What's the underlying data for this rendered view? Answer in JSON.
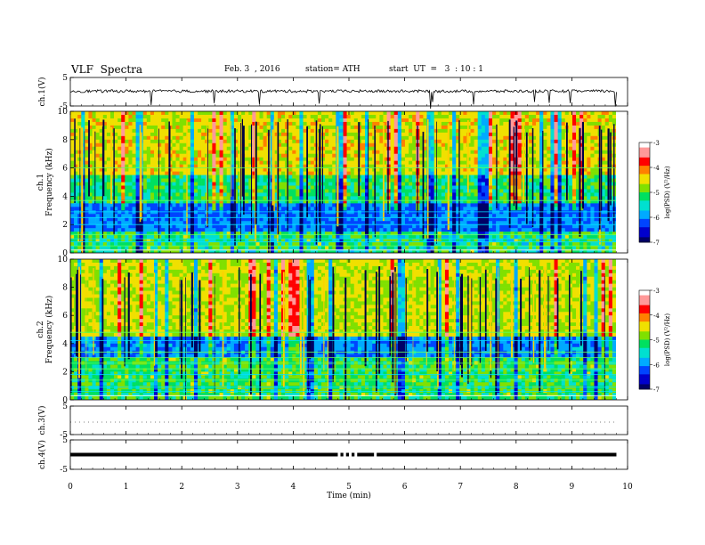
{
  "header": {
    "title": "VLF  Spectra",
    "date": "Feb. 3  , 2016",
    "station": "station= ATH",
    "start": "start  UT  =   3  : 10 : 1"
  },
  "colors": {
    "psd_colormap": [
      "#000066",
      "#0000cc",
      "#0044ff",
      "#00aaff",
      "#00e0d0",
      "#00e060",
      "#80e000",
      "#f0e000",
      "#ff8000",
      "#ff0000",
      "#ff9999",
      "#ffffff"
    ],
    "trace": "#000000"
  },
  "chart_data": [
    {
      "name_label": "ch.1(V)",
      "type": "line",
      "ylabel": "ch.1(V)",
      "ylim": [
        -5,
        5
      ],
      "yticks": [
        "5",
        "-5"
      ],
      "mean": 0.2,
      "noise_amplitude": 0.5,
      "x": [
        0,
        9.8
      ]
    },
    {
      "type": "heatmap",
      "ylabel": "ch.1\nFrequency  (kHz)",
      "ylim": [
        0,
        10
      ],
      "yticks": [
        "0",
        "2",
        "4",
        "6",
        "8",
        "10"
      ],
      "colorbar": {
        "label": "log(PSD) (V²/Hz)",
        "range": [
          -7,
          -3
        ],
        "ticks": [
          "-3",
          "-4",
          "-5",
          "-6",
          "-7"
        ]
      }
    },
    {
      "type": "heatmap",
      "ylabel": "ch.2\nFrequency  (kHz)",
      "ylim": [
        0,
        10
      ],
      "yticks": [
        "0",
        "2",
        "4",
        "6",
        "8",
        "10"
      ],
      "colorbar": {
        "label": "log(PSD) (V²/Hz)",
        "range": [
          -7,
          -3
        ],
        "ticks": [
          "-3",
          "-4",
          "-5",
          "-6",
          "-7"
        ]
      }
    },
    {
      "type": "line",
      "ylabel": "ch.3(V)",
      "ylim": [
        -5,
        5
      ],
      "yticks": [
        "5",
        "-5"
      ],
      "mean": 0,
      "x": [
        0,
        9.8
      ]
    },
    {
      "type": "line",
      "ylabel": "ch.4(V)",
      "ylim": [
        -5,
        5
      ],
      "yticks": [
        "5",
        "-5"
      ],
      "mean": 0,
      "x": [
        0,
        9.8
      ]
    }
  ],
  "xaxis": {
    "label": "Time  (min)",
    "range": [
      0,
      10
    ],
    "ticks": [
      "0",
      "1",
      "2",
      "3",
      "4",
      "5",
      "6",
      "7",
      "8",
      "9",
      "10"
    ]
  }
}
